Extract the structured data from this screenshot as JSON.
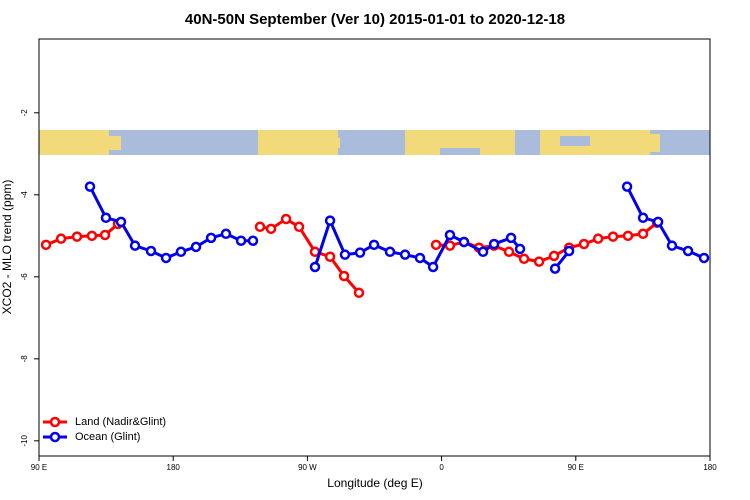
{
  "chart_data": {
    "type": "line",
    "title": "40N-50N September (Ver 10)   2015-01-01 to 2020-12-18",
    "x_label": "Longitude (deg E)",
    "y_label": "XCO2 - MLO trend (ppm)",
    "xlim": [
      90,
      540
    ],
    "xticks": [
      {
        "value": 90,
        "label": "90 E"
      },
      {
        "value": 180,
        "label": "180"
      },
      {
        "value": 270,
        "label": "90 W"
      },
      {
        "value": 360,
        "label": "0"
      },
      {
        "value": 450,
        "label": "90 E"
      },
      {
        "value": 540,
        "label": "180"
      }
    ],
    "ylim": [
      -10.37,
      -0.2
    ],
    "yticks": [
      -10,
      -8,
      -6,
      -4,
      -2
    ],
    "legend": "bottom-left",
    "series": [
      {
        "name": "Land (Nadir&Glint)",
        "color": "#ff0000",
        "x": [
          94.7,
          104.8,
          115.5,
          125.5,
          134.3,
          143,
          null,
          238.2,
          245.6,
          255.7,
          264.4,
          275.1,
          285.2,
          294.6,
          304.6,
          null,
          356.3,
          365.6,
          375.0,
          385.1,
          395.2,
          405.2,
          415.3,
          425.4,
          435.4,
          445.5,
          455.5,
          465.0,
          475.0,
          485.0,
          495.1,
          504.5
        ],
        "values": [
          -5.22,
          -5.07,
          -5.02,
          -5.0,
          -4.98,
          -4.71,
          null,
          -4.78,
          -4.83,
          -4.59,
          -4.78,
          -5.39,
          -5.51,
          -5.98,
          -6.39,
          null,
          -5.22,
          -5.24,
          -5.15,
          -5.29,
          -5.24,
          -5.39,
          -5.56,
          -5.63,
          -5.49,
          -5.29,
          -5.2,
          -5.07,
          -5.02,
          -5.0,
          -4.95,
          -4.68
        ]
      },
      {
        "name": "Ocean (Glint)",
        "color": "#0000ee",
        "x": [
          124.2,
          134.9,
          145.0,
          154.4,
          165.1,
          175.2,
          185.2,
          195.3,
          205.4,
          215.4,
          225.5,
          233.5,
          null,
          275.1,
          285.2,
          295.2,
          305.3,
          314.7,
          325.4,
          335.5,
          345.5,
          354.3,
          365.6,
          375.0,
          387.8,
          395.2,
          406.6,
          412.6,
          null,
          436.1,
          445.5,
          null,
          484.4,
          495.1,
          505.2,
          514.5,
          525.3,
          536.0
        ],
        "values": [
          -3.8,
          -4.56,
          -4.66,
          -5.24,
          -5.37,
          -5.54,
          -5.39,
          -5.27,
          -5.05,
          -4.95,
          -5.12,
          -5.12,
          null,
          -5.76,
          -4.63,
          -5.46,
          -5.41,
          -5.22,
          -5.39,
          -5.46,
          -5.54,
          -5.76,
          -4.98,
          -5.15,
          -5.39,
          -5.2,
          -5.05,
          -5.32,
          null,
          -5.8,
          -5.37,
          null,
          -3.8,
          -4.56,
          -4.66,
          -5.24,
          -5.37,
          -5.54
        ]
      }
    ]
  }
}
